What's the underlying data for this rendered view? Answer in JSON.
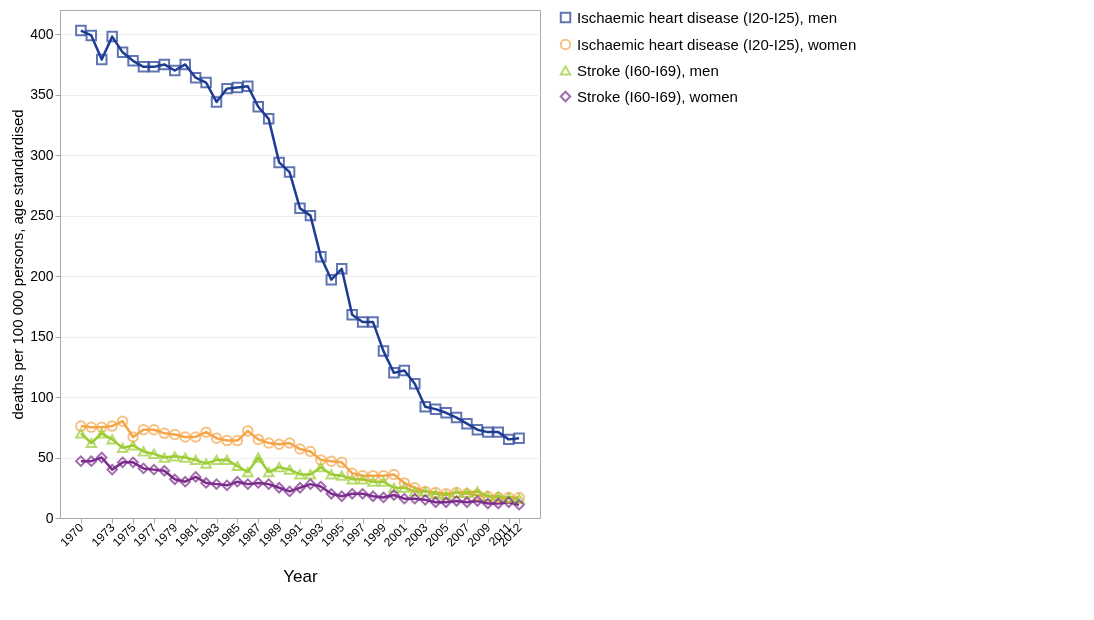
{
  "chart_data": {
    "type": "line",
    "xlabel": "Year",
    "ylabel": "deaths per 100 000 persons, age standardised",
    "x": [
      1970,
      1971,
      1972,
      1973,
      1974,
      1975,
      1976,
      1977,
      1978,
      1979,
      1980,
      1981,
      1982,
      1983,
      1984,
      1985,
      1986,
      1987,
      1988,
      1989,
      1990,
      1991,
      1992,
      1993,
      1994,
      1995,
      1996,
      1997,
      1998,
      1999,
      2000,
      2001,
      2002,
      2003,
      2004,
      2005,
      2006,
      2007,
      2008,
      2009,
      2010,
      2011,
      2012
    ],
    "series": [
      {
        "name": "Ischaemic heart disease (I20-I25), men",
        "color": "#1f3c94",
        "marker": "square",
        "values": [
          403,
          399,
          379,
          398,
          385,
          378,
          373,
          373,
          375,
          370,
          375,
          364,
          360,
          344,
          355,
          356,
          357,
          340,
          330,
          294,
          286,
          256,
          250,
          216,
          197,
          206,
          168,
          162,
          162,
          138,
          120,
          122,
          111,
          92,
          90,
          87,
          83,
          78,
          73,
          71,
          71,
          65,
          66
        ]
      },
      {
        "name": "Ischaemic heart disease (I20-I25), women",
        "color": "#f5a54a",
        "marker": "circle",
        "values": [
          76,
          75,
          75,
          76,
          80,
          67,
          73,
          73,
          70,
          69,
          67,
          67,
          71,
          66,
          64,
          64,
          72,
          65,
          62,
          61,
          62,
          57,
          55,
          48,
          47,
          46,
          37,
          35,
          35,
          35,
          36,
          29,
          25,
          22,
          21,
          20,
          21,
          20,
          19,
          18,
          17,
          17,
          17
        ]
      },
      {
        "name": "Stroke (I60-I69), men",
        "color": "#9acd32",
        "marker": "triangle",
        "values": [
          70,
          62,
          70,
          65,
          58,
          60,
          55,
          53,
          50,
          51,
          50,
          48,
          45,
          48,
          48,
          43,
          38,
          50,
          38,
          42,
          40,
          36,
          36,
          42,
          36,
          35,
          32,
          32,
          30,
          30,
          25,
          25,
          22,
          22,
          20,
          19,
          21,
          21,
          22,
          18,
          18,
          17,
          16
        ]
      },
      {
        "name": "Stroke (I60-I69), women",
        "color": "#7b2d8b",
        "marker": "diamond",
        "values": [
          47,
          47,
          50,
          40,
          46,
          46,
          41,
          40,
          39,
          32,
          30,
          34,
          29,
          28,
          27,
          30,
          28,
          29,
          28,
          25,
          22,
          25,
          28,
          26,
          20,
          18,
          20,
          20,
          18,
          17,
          19,
          16,
          16,
          15,
          13,
          13,
          14,
          13,
          14,
          12,
          12,
          13,
          11
        ]
      }
    ],
    "xlim": [
      1968,
      2014
    ],
    "xticks": [
      1970,
      1973,
      1975,
      1977,
      1979,
      1981,
      1983,
      1985,
      1987,
      1989,
      1991,
      1993,
      1995,
      1997,
      1999,
      2001,
      2003,
      2005,
      2007,
      2009,
      2011,
      2012
    ],
    "ylim": [
      0,
      420
    ],
    "yticks": [
      0,
      50,
      100,
      150,
      200,
      250,
      300,
      350,
      400
    ],
    "grid": "y",
    "legend": "right",
    "line_style": "solid"
  }
}
